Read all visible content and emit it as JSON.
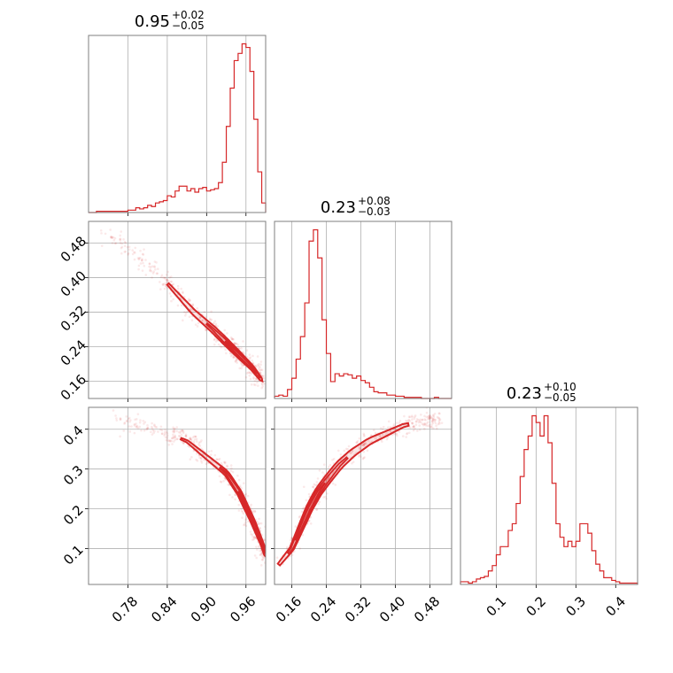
{
  "chart_data": {
    "type": "corner",
    "parameters": [
      {
        "id": "p0",
        "range": [
          0.72,
          0.99
        ],
        "ticks": [
          0.78,
          0.84,
          0.9,
          0.96
        ],
        "tick_labels": [
          "0.78",
          "0.84",
          "0.90",
          "0.96"
        ],
        "title": {
          "median": "0.95",
          "upper": "+0.02",
          "lower": "−0.05"
        },
        "histogram": {
          "bin_edges": [
            0.72,
            0.726,
            0.732,
            0.738,
            0.744,
            0.75,
            0.756,
            0.762,
            0.768,
            0.774,
            0.78,
            0.786,
            0.792,
            0.798,
            0.804,
            0.81,
            0.816,
            0.822,
            0.828,
            0.834,
            0.84,
            0.846,
            0.852,
            0.858,
            0.864,
            0.87,
            0.876,
            0.882,
            0.888,
            0.894,
            0.9,
            0.906,
            0.912,
            0.918,
            0.924,
            0.93,
            0.936,
            0.942,
            0.948,
            0.954,
            0.96,
            0.966,
            0.972,
            0.978,
            0.984,
            0.99
          ],
          "counts": [
            0,
            0,
            1,
            1,
            1,
            1,
            1,
            1,
            1,
            1,
            2,
            2,
            4,
            3,
            4,
            6,
            5,
            8,
            9,
            10,
            14,
            13,
            18,
            22,
            22,
            18,
            20,
            17,
            20,
            21,
            18,
            19,
            20,
            25,
            42,
            72,
            104,
            127,
            133,
            141,
            138,
            118,
            78,
            34,
            8
          ]
        }
      },
      {
        "id": "p1",
        "range": [
          0.12,
          0.53
        ],
        "ticks": [
          0.16,
          0.24,
          0.32,
          0.4,
          0.48
        ],
        "tick_labels": [
          "0.16",
          "0.24",
          "0.32",
          "0.40",
          "0.48"
        ],
        "title": {
          "median": "0.23",
          "upper": "+0.08",
          "lower": "−0.03"
        },
        "histogram": {
          "bin_edges": [
            0.12,
            0.13,
            0.14,
            0.15,
            0.16,
            0.17,
            0.18,
            0.19,
            0.2,
            0.21,
            0.22,
            0.23,
            0.24,
            0.25,
            0.26,
            0.27,
            0.28,
            0.29,
            0.3,
            0.31,
            0.32,
            0.33,
            0.34,
            0.35,
            0.36,
            0.37,
            0.38,
            0.39,
            0.4,
            0.41,
            0.42,
            0.43,
            0.44,
            0.45,
            0.46,
            0.47,
            0.48,
            0.49,
            0.5,
            0.51,
            0.52,
            0.53
          ],
          "counts": [
            2,
            3,
            2,
            8,
            18,
            35,
            55,
            85,
            140,
            150,
            125,
            70,
            40,
            15,
            22,
            20,
            22,
            21,
            18,
            20,
            16,
            14,
            10,
            6,
            5,
            5,
            3,
            3,
            2,
            2,
            1,
            1,
            1,
            1,
            0,
            0,
            0,
            1,
            0,
            0,
            0
          ]
        }
      },
      {
        "id": "p2",
        "range": [
          0.01,
          0.455
        ],
        "ticks": [
          0.1,
          0.2,
          0.3,
          0.4
        ],
        "tick_labels": [
          "0.1",
          "0.2",
          "0.3",
          "0.4"
        ],
        "title": {
          "median": "0.23",
          "upper": "+0.10",
          "lower": "−0.05"
        },
        "histogram": {
          "bin_edges": [
            0.01,
            0.02,
            0.03,
            0.04,
            0.05,
            0.06,
            0.07,
            0.08,
            0.09,
            0.1,
            0.11,
            0.12,
            0.13,
            0.14,
            0.15,
            0.16,
            0.17,
            0.18,
            0.19,
            0.2,
            0.21,
            0.22,
            0.23,
            0.24,
            0.25,
            0.26,
            0.27,
            0.28,
            0.29,
            0.3,
            0.31,
            0.32,
            0.33,
            0.34,
            0.35,
            0.36,
            0.37,
            0.38,
            0.39,
            0.4,
            0.41,
            0.42,
            0.43,
            0.44,
            0.45,
            0.455
          ],
          "counts": [
            2,
            2,
            1,
            2,
            4,
            5,
            6,
            10,
            14,
            22,
            28,
            28,
            40,
            45,
            60,
            80,
            100,
            110,
            125,
            120,
            110,
            125,
            105,
            75,
            45,
            35,
            28,
            32,
            28,
            32,
            45,
            45,
            38,
            25,
            15,
            10,
            5,
            5,
            3,
            2,
            1,
            1,
            1,
            1,
            1
          ]
        }
      }
    ],
    "pairs": [
      {
        "x": "p0",
        "y": "p1",
        "ridge": [
          [
            0.745,
            0.5
          ],
          [
            0.78,
            0.47
          ],
          [
            0.82,
            0.42
          ],
          [
            0.85,
            0.37
          ],
          [
            0.88,
            0.32
          ],
          [
            0.91,
            0.28
          ],
          [
            0.93,
            0.25
          ],
          [
            0.95,
            0.22
          ],
          [
            0.97,
            0.19
          ],
          [
            0.985,
            0.16
          ]
        ],
        "width": 0.018
      },
      {
        "x": "p0",
        "y": "p2",
        "ridge": [
          [
            0.76,
            0.43
          ],
          [
            0.8,
            0.41
          ],
          [
            0.84,
            0.39
          ],
          [
            0.87,
            0.37
          ],
          [
            0.9,
            0.33
          ],
          [
            0.93,
            0.29
          ],
          [
            0.95,
            0.24
          ],
          [
            0.97,
            0.17
          ],
          [
            0.985,
            0.11
          ],
          [
            0.99,
            0.08
          ]
        ],
        "width": 0.014
      },
      {
        "x": "p1",
        "y": "p2",
        "ridge": [
          [
            0.13,
            0.06
          ],
          [
            0.16,
            0.1
          ],
          [
            0.18,
            0.15
          ],
          [
            0.2,
            0.2
          ],
          [
            0.22,
            0.24
          ],
          [
            0.24,
            0.27
          ],
          [
            0.27,
            0.31
          ],
          [
            0.3,
            0.34
          ],
          [
            0.34,
            0.37
          ],
          [
            0.38,
            0.39
          ],
          [
            0.42,
            0.41
          ],
          [
            0.47,
            0.42
          ],
          [
            0.5,
            0.43
          ]
        ],
        "width": 0.022
      }
    ],
    "grid": true,
    "color": "#d62728",
    "xlabel": "",
    "ylabel": ""
  }
}
